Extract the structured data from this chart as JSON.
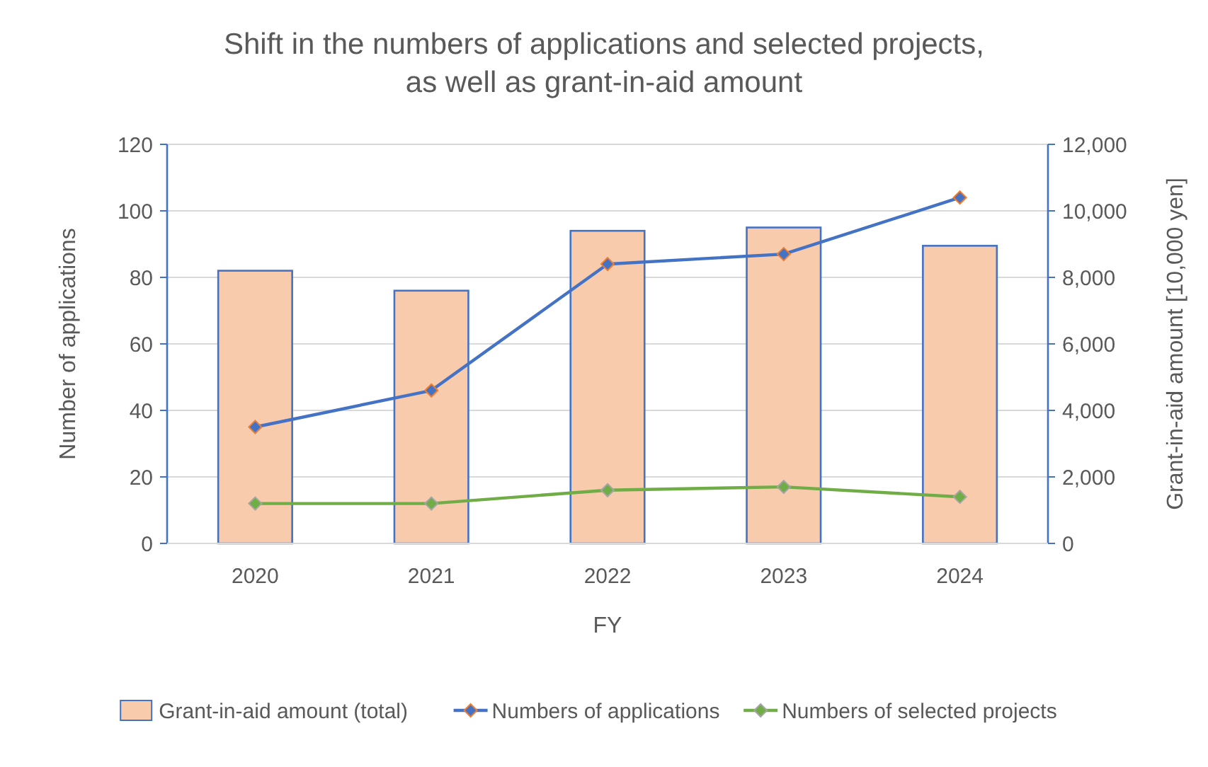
{
  "chart_data": {
    "type": "bar",
    "title": "Shift in the numbers of applications and selected projects,\nas well as grant-in-aid amount",
    "xlabel": "FY",
    "ylabel": "Number of applications",
    "y2label": "Grant-in-aid amount [10,000 yen]",
    "categories": [
      "2020",
      "2021",
      "2022",
      "2023",
      "2024"
    ],
    "series": [
      {
        "name": "Grant-in-aid amount (total)",
        "axis": "y2",
        "color": "#f8cbad",
        "values": [
          8200,
          7600,
          9400,
          9500,
          8950
        ]
      },
      {
        "name": "Numbers of applications",
        "type": "line",
        "color": "#4472c4",
        "values": [
          35,
          46,
          84,
          87,
          104
        ]
      },
      {
        "name": "Numbers of selected projects",
        "type": "line",
        "color": "#70ad47",
        "values": [
          12,
          12,
          16,
          17,
          14
        ]
      }
    ],
    "ylim": [
      0,
      120
    ],
    "yticks": [
      0,
      20,
      40,
      60,
      80,
      100,
      120
    ],
    "y2lim": [
      0,
      12000
    ],
    "y2ticks": [
      {
        "value": 0,
        "label": "0"
      },
      {
        "value": 2000,
        "label": "2,000"
      },
      {
        "value": 4000,
        "label": "4,000"
      },
      {
        "value": 6000,
        "label": "6,000"
      },
      {
        "value": 8000,
        "label": "8,000"
      },
      {
        "value": 10000,
        "label": "10,000"
      },
      {
        "value": 12000,
        "label": "12,000"
      }
    ],
    "grid": "y",
    "legend": "bottom",
    "marker": "diamond",
    "line_style": "solid"
  }
}
